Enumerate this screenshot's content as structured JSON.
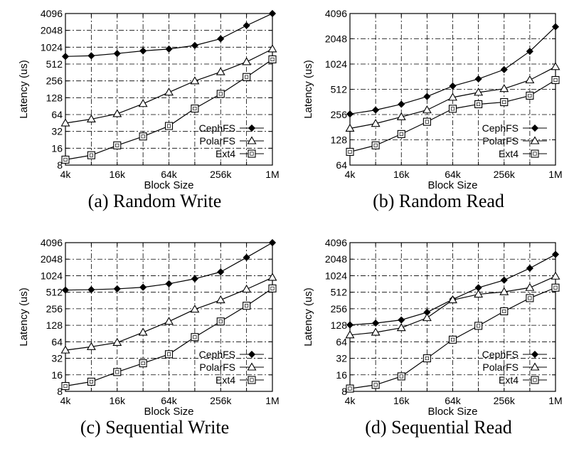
{
  "chart_data": [
    {
      "type": "line",
      "caption": "(a) Random Write",
      "xlabel": "Block Size",
      "ylabel": "Latency (us)",
      "x_categories": [
        "4k",
        "8k",
        "16k",
        "32k",
        "64k",
        "128k",
        "256k",
        "512k",
        "1M"
      ],
      "x_tick_labels": [
        "4k",
        "16k",
        "64k",
        "256k",
        "1M"
      ],
      "y_ticks": [
        8,
        16,
        32,
        64,
        128,
        256,
        512,
        1024,
        2048,
        4096
      ],
      "y_scale": "log2",
      "ylim": [
        8,
        4096
      ],
      "grid": true,
      "legend_position": "lower-right",
      "series": [
        {
          "name": "CephFS",
          "marker": "diamond-filled",
          "values": [
            700,
            720,
            790,
            880,
            950,
            1100,
            1450,
            2500,
            4096
          ]
        },
        {
          "name": "PolarFS",
          "marker": "triangle-open",
          "values": [
            45,
            53,
            66,
            100,
            160,
            255,
            370,
            560,
            950
          ]
        },
        {
          "name": "Ext4",
          "marker": "square-open",
          "values": [
            10,
            12,
            18,
            26,
            40,
            82,
            150,
            300,
            620
          ]
        }
      ]
    },
    {
      "type": "line",
      "caption": "(b) Random Read",
      "xlabel": "Block Size",
      "ylabel": "Latency (us)",
      "x_categories": [
        "4k",
        "8k",
        "16k",
        "32k",
        "64k",
        "128k",
        "256k",
        "512k",
        "1M"
      ],
      "x_tick_labels": [
        "4k",
        "16k",
        "64k",
        "256k",
        "1M"
      ],
      "y_ticks": [
        64,
        128,
        256,
        512,
        1024,
        2048,
        4096
      ],
      "y_scale": "log2",
      "ylim": [
        64,
        4096
      ],
      "grid": true,
      "legend_position": "lower-right",
      "series": [
        {
          "name": "CephFS",
          "marker": "diamond-filled",
          "values": [
            260,
            290,
            340,
            420,
            560,
            680,
            880,
            1450,
            2850
          ]
        },
        {
          "name": "PolarFS",
          "marker": "triangle-open",
          "values": [
            175,
            200,
            240,
            290,
            410,
            470,
            520,
            660,
            950
          ]
        },
        {
          "name": "Ext4",
          "marker": "square-open",
          "values": [
            92,
            110,
            150,
            210,
            300,
            340,
            360,
            430,
            660
          ]
        }
      ]
    },
    {
      "type": "line",
      "caption": "(c) Sequential Write",
      "xlabel": "Block Size",
      "ylabel": "Latency (us)",
      "x_categories": [
        "4k",
        "8k",
        "16k",
        "32k",
        "64k",
        "128k",
        "256k",
        "512k",
        "1M"
      ],
      "x_tick_labels": [
        "4k",
        "16k",
        "64k",
        "256k",
        "1M"
      ],
      "y_ticks": [
        8,
        16,
        32,
        64,
        128,
        256,
        512,
        1024,
        2048,
        4096
      ],
      "y_scale": "log2",
      "ylim": [
        8,
        4096
      ],
      "grid": true,
      "legend_position": "lower-right",
      "series": [
        {
          "name": "CephFS",
          "marker": "diamond-filled",
          "values": [
            560,
            570,
            590,
            630,
            730,
            900,
            1200,
            2200,
            4096
          ]
        },
        {
          "name": "PolarFS",
          "marker": "triangle-open",
          "values": [
            45,
            52,
            62,
            95,
            150,
            250,
            370,
            580,
            950
          ]
        },
        {
          "name": "Ext4",
          "marker": "square-open",
          "values": [
            10,
            12,
            18,
            26,
            38,
            78,
            150,
            290,
            600
          ]
        }
      ]
    },
    {
      "type": "line",
      "caption": "(d) Sequential Read",
      "xlabel": "Block Size",
      "ylabel": "Latency (us)",
      "x_categories": [
        "4k",
        "8k",
        "16k",
        "32k",
        "64k",
        "128k",
        "256k",
        "512k",
        "1M"
      ],
      "x_tick_labels": [
        "4k",
        "16k",
        "64k",
        "256k",
        "1M"
      ],
      "y_ticks": [
        8,
        16,
        32,
        64,
        128,
        256,
        512,
        1024,
        2048,
        4096
      ],
      "y_scale": "log2",
      "ylim": [
        8,
        4096
      ],
      "grid": true,
      "legend_position": "lower-right",
      "series": [
        {
          "name": "CephFS",
          "marker": "diamond-filled",
          "values": [
            130,
            140,
            160,
            220,
            380,
            620,
            850,
            1400,
            2500
          ]
        },
        {
          "name": "PolarFS",
          "marker": "triangle-open",
          "values": [
            85,
            95,
            115,
            175,
            370,
            470,
            520,
            620,
            1000
          ]
        },
        {
          "name": "Ext4",
          "marker": "square-open",
          "values": [
            9,
            10.5,
            15,
            32,
            70,
            125,
            230,
            400,
            620
          ]
        }
      ]
    }
  ]
}
